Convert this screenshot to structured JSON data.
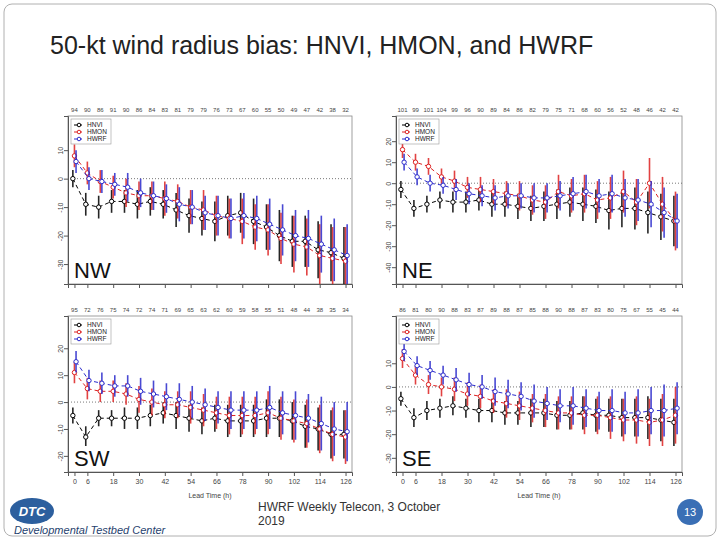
{
  "title": "50-kt wind radius bias: HNVI, HMON, and HWRF",
  "footer": "HWRF Weekly Telecon, 3 October 2019",
  "page_number": 13,
  "logo": "DTC",
  "organization": "Developmental Testbed Center",
  "chart_data": [
    {
      "type": "line",
      "title": "NW",
      "x": [
        0,
        6,
        12,
        18,
        24,
        30,
        36,
        42,
        48,
        54,
        60,
        66,
        72,
        78,
        84,
        90,
        96,
        102,
        108,
        114,
        120,
        126
      ],
      "xlim": [
        -3,
        129
      ],
      "xticks": [
        0,
        6,
        18,
        30,
        42,
        54,
        66,
        78,
        90,
        102,
        114,
        126
      ],
      "ylim": [
        -37,
        22
      ],
      "yticks": [
        -30,
        -20,
        -10,
        0,
        10
      ],
      "tick_labels": "y",
      "legend": "topleft",
      "reference_line": 0,
      "counts": [
        94,
        90,
        86,
        91,
        90,
        86,
        84,
        83,
        81,
        79,
        79,
        76,
        73,
        67,
        60,
        55,
        50,
        49,
        47,
        42,
        38,
        32
      ],
      "series": [
        {
          "name": "HNVI",
          "color": "#000000",
          "marker": "circle",
          "line_style": "dashed",
          "values": [
            0,
            -9,
            -10,
            -8,
            -8,
            -9,
            -8,
            -9,
            -11,
            -13,
            -14,
            -15,
            -13,
            -12,
            -15,
            -17,
            -20,
            -22,
            -22,
            -25,
            -26,
            -28
          ],
          "errors": [
            3,
            4,
            4,
            4,
            4,
            5,
            5,
            5,
            6,
            6,
            6,
            7,
            7,
            7,
            8,
            8,
            9,
            9,
            9,
            10,
            10,
            11
          ]
        },
        {
          "name": "HMON",
          "color": "#dd2222",
          "marker": "circle",
          "line_style": "dashed",
          "values": [
            8,
            2,
            -1,
            -3,
            -5,
            -6,
            -6,
            -7,
            -8,
            -10,
            -11,
            -13,
            -14,
            -15,
            -17,
            -18,
            -21,
            -23,
            -24,
            -27,
            -28,
            -29
          ],
          "errors": [
            4,
            4,
            4,
            4,
            5,
            5,
            5,
            6,
            6,
            6,
            7,
            7,
            7,
            8,
            8,
            9,
            9,
            10,
            10,
            11,
            11,
            12
          ]
        },
        {
          "name": "HWRF",
          "color": "#2a2acc",
          "marker": "circle",
          "line_style": "dashed",
          "values": [
            6,
            0,
            -1,
            -2,
            -3,
            -5,
            -6,
            -7,
            -9,
            -10,
            -12,
            -13,
            -14,
            -13,
            -14,
            -16,
            -18,
            -20,
            -21,
            -23,
            -25,
            -27
          ],
          "errors": [
            4,
            4,
            4,
            4,
            5,
            5,
            5,
            5,
            6,
            6,
            6,
            7,
            7,
            8,
            8,
            9,
            9,
            9,
            10,
            10,
            11,
            11
          ]
        }
      ]
    },
    {
      "type": "line",
      "title": "NE",
      "x": [
        0,
        6,
        12,
        18,
        24,
        30,
        36,
        42,
        48,
        54,
        60,
        66,
        72,
        78,
        84,
        90,
        96,
        102,
        108,
        114,
        120,
        126
      ],
      "xlim": [
        -3,
        129
      ],
      "xticks": [
        0,
        6,
        18,
        30,
        42,
        54,
        66,
        78,
        90,
        102,
        114,
        126
      ],
      "ylim": [
        -48,
        32
      ],
      "yticks": [
        -40,
        -30,
        -20,
        -10,
        0,
        10,
        20
      ],
      "tick_labels": "y",
      "legend": "topleft",
      "reference_line": 0,
      "counts": [
        101,
        99,
        101,
        104,
        99,
        96,
        90,
        89,
        84,
        86,
        82,
        79,
        75,
        71,
        68,
        60,
        56,
        52,
        48,
        46,
        42,
        42
      ],
      "series": [
        {
          "name": "HNVI",
          "color": "#000000",
          "marker": "circle",
          "line_style": "dashed",
          "values": [
            -3,
            -12,
            -10,
            -8,
            -9,
            -9,
            -8,
            -10,
            -10,
            -11,
            -12,
            -11,
            -10,
            -9,
            -10,
            -11,
            -13,
            -12,
            -12,
            -14,
            -16,
            -18
          ],
          "errors": [
            4,
            4,
            4,
            4,
            5,
            5,
            5,
            6,
            6,
            6,
            6,
            7,
            7,
            7,
            8,
            8,
            9,
            9,
            10,
            10,
            11,
            12
          ]
        },
        {
          "name": "HMON",
          "color": "#dd2222",
          "marker": "circle",
          "line_style": "dashed",
          "values": [
            16,
            10,
            8,
            3,
            1,
            -2,
            -3,
            -4,
            -5,
            -6,
            -8,
            -9,
            -4,
            -6,
            -5,
            -8,
            -7,
            -4,
            -9,
            0,
            -10,
            -18
          ],
          "errors": [
            4,
            4,
            4,
            4,
            5,
            5,
            6,
            6,
            6,
            7,
            7,
            8,
            8,
            8,
            9,
            9,
            10,
            10,
            11,
            12,
            13,
            14
          ]
        },
        {
          "name": "HWRF",
          "color": "#2a2acc",
          "marker": "circle",
          "line_style": "dashed",
          "values": [
            10,
            3,
            0,
            -1,
            -3,
            -5,
            -6,
            -7,
            -6,
            -6,
            -7,
            -7,
            -6,
            -5,
            -4,
            -6,
            -5,
            -7,
            -8,
            -10,
            -14,
            -18
          ],
          "errors": [
            4,
            4,
            4,
            4,
            5,
            5,
            5,
            6,
            6,
            6,
            7,
            7,
            7,
            8,
            8,
            8,
            9,
            9,
            10,
            11,
            12,
            13
          ]
        }
      ]
    },
    {
      "type": "line",
      "title": "SW",
      "x": [
        0,
        6,
        12,
        18,
        24,
        30,
        36,
        42,
        48,
        54,
        60,
        66,
        72,
        78,
        84,
        90,
        96,
        102,
        108,
        114,
        120,
        126
      ],
      "xlim": [
        -3,
        129
      ],
      "xticks": [
        0,
        6,
        18,
        30,
        42,
        54,
        66,
        78,
        90,
        102,
        114,
        126
      ],
      "ylim": [
        -26,
        32
      ],
      "yticks": [
        -20,
        -10,
        0,
        10,
        20
      ],
      "x_label": "Lead Time (h)",
      "legend": "topleft",
      "reference_line": 0,
      "counts": [
        95,
        72,
        76,
        75,
        74,
        72,
        74,
        71,
        69,
        65,
        63,
        62,
        60,
        59,
        58,
        55,
        51,
        48,
        44,
        38,
        35,
        34
      ],
      "series": [
        {
          "name": "HNVI",
          "color": "#000000",
          "marker": "circle",
          "line_style": "dashed",
          "values": [
            -5,
            -13,
            -6,
            -6,
            -6,
            -6,
            -5,
            -4,
            -5,
            -6,
            -7,
            -6,
            -7,
            -7,
            -7,
            -6,
            -6,
            -7,
            -9,
            -10,
            -12,
            -12
          ],
          "errors": [
            3,
            4,
            3,
            3,
            4,
            4,
            4,
            4,
            5,
            5,
            5,
            5,
            6,
            6,
            6,
            7,
            7,
            7,
            8,
            8,
            9,
            9
          ]
        },
        {
          "name": "HMON",
          "color": "#dd2222",
          "marker": "circle",
          "line_style": "dashed",
          "values": [
            11,
            5,
            4,
            4,
            3,
            1,
            0,
            -1,
            -1,
            -2,
            -3,
            -4,
            -5,
            -5,
            -5,
            -4,
            -6,
            -7,
            -8,
            -10,
            -12,
            -13
          ],
          "errors": [
            4,
            4,
            4,
            4,
            4,
            5,
            5,
            5,
            5,
            6,
            6,
            6,
            7,
            7,
            7,
            8,
            8,
            8,
            9,
            9,
            10,
            10
          ]
        },
        {
          "name": "HWRF",
          "color": "#2a2acc",
          "marker": "circle",
          "line_style": "dashed",
          "values": [
            15,
            8,
            7,
            6,
            6,
            4,
            3,
            2,
            1,
            0,
            -1,
            -2,
            -3,
            -3,
            -3,
            -2,
            -4,
            -5,
            -6,
            -8,
            -10,
            -11
          ],
          "errors": [
            4,
            4,
            4,
            4,
            4,
            5,
            5,
            5,
            6,
            6,
            6,
            6,
            7,
            7,
            7,
            8,
            8,
            9,
            9,
            10,
            10,
            11
          ]
        }
      ]
    },
    {
      "type": "line",
      "title": "SE",
      "x": [
        0,
        6,
        12,
        18,
        24,
        30,
        36,
        42,
        48,
        54,
        60,
        66,
        72,
        78,
        84,
        90,
        96,
        102,
        108,
        114,
        120,
        126
      ],
      "xlim": [
        -3,
        129
      ],
      "xticks": [
        0,
        6,
        18,
        30,
        42,
        54,
        66,
        78,
        90,
        102,
        114,
        126
      ],
      "ylim": [
        -36,
        30
      ],
      "yticks": [
        -30,
        -20,
        -10,
        0,
        10
      ],
      "x_label": "Lead Time (h)",
      "legend": "topleft",
      "reference_line": 0,
      "counts": [
        86,
        81,
        80,
        90,
        88,
        83,
        87,
        89,
        88,
        87,
        85,
        88,
        90,
        88,
        87,
        83,
        80,
        75,
        67,
        55,
        45,
        44
      ],
      "series": [
        {
          "name": "HNVI",
          "color": "#000000",
          "marker": "circle",
          "line_style": "dashed",
          "values": [
            -5,
            -13,
            -10,
            -9,
            -8,
            -9,
            -10,
            -10,
            -11,
            -11,
            -11,
            -11,
            -12,
            -12,
            -11,
            -12,
            -12,
            -13,
            -13,
            -13,
            -14,
            -15
          ],
          "errors": [
            3,
            4,
            4,
            4,
            4,
            4,
            5,
            5,
            5,
            5,
            6,
            6,
            6,
            6,
            7,
            7,
            7,
            8,
            8,
            9,
            9,
            10
          ]
        },
        {
          "name": "HMON",
          "color": "#dd2222",
          "marker": "circle",
          "line_style": "dashed",
          "values": [
            12,
            5,
            1,
            0,
            -1,
            -3,
            -4,
            -6,
            -7,
            -8,
            -9,
            -10,
            -11,
            -11,
            -12,
            -12,
            -13,
            -14,
            -14,
            -15,
            -14,
            -12
          ],
          "errors": [
            4,
            4,
            4,
            4,
            5,
            5,
            5,
            5,
            6,
            6,
            6,
            7,
            7,
            7,
            8,
            8,
            9,
            9,
            10,
            10,
            11,
            12
          ]
        },
        {
          "name": "HWRF",
          "color": "#2a2acc",
          "marker": "circle",
          "line_style": "dashed",
          "values": [
            15,
            9,
            7,
            5,
            3,
            1,
            0,
            -2,
            -3,
            -4,
            -6,
            -7,
            -8,
            -8,
            -9,
            -10,
            -10,
            -11,
            -11,
            -10,
            -10,
            -9
          ],
          "errors": [
            4,
            4,
            4,
            4,
            5,
            5,
            5,
            6,
            6,
            6,
            7,
            7,
            7,
            8,
            8,
            8,
            9,
            9,
            10,
            10,
            11,
            11
          ]
        }
      ]
    }
  ]
}
